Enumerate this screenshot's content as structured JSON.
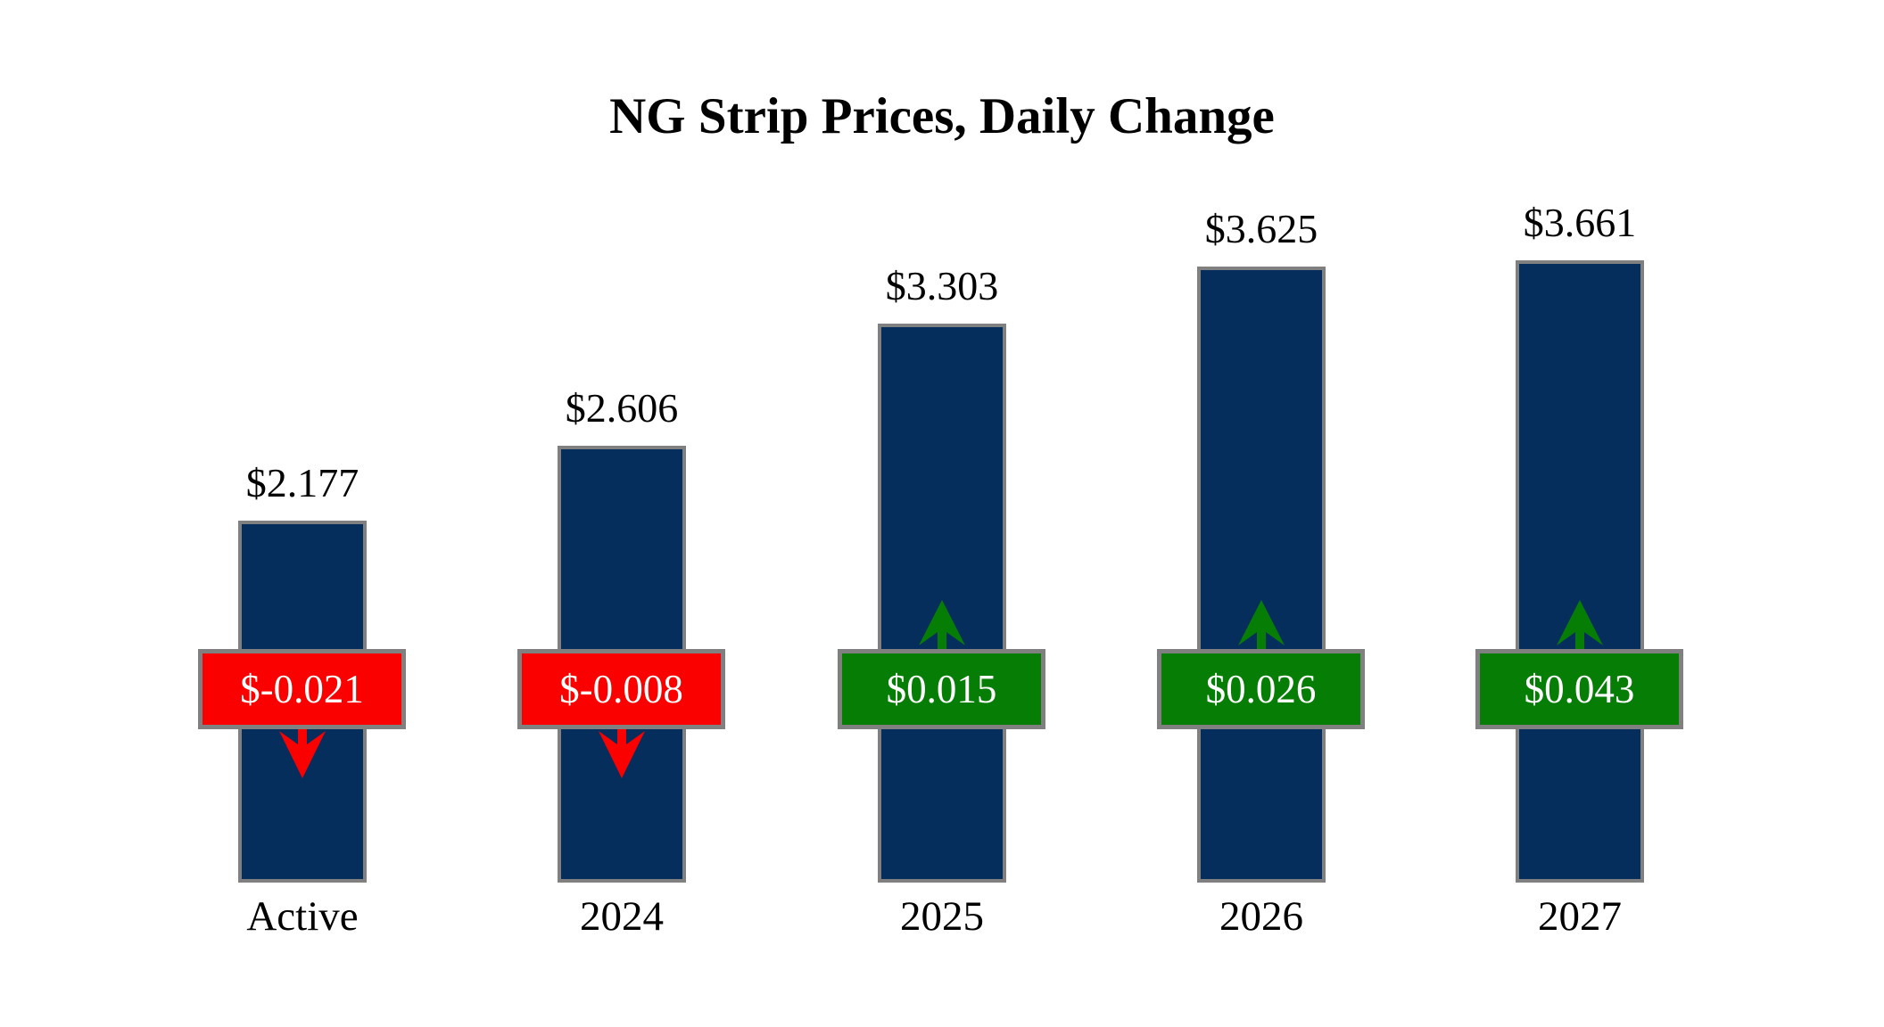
{
  "page": {
    "background": "#FFFFFF"
  },
  "chart_data": {
    "type": "bar",
    "title": "NG Strip Prices, Daily Change",
    "categories": [
      "Active",
      "2024",
      "2025",
      "2026",
      "2027"
    ],
    "series": [
      {
        "name": "Strip Price ($)",
        "values": [
          2.177,
          2.606,
          3.303,
          3.625,
          3.661
        ]
      },
      {
        "name": "Daily Change ($)",
        "values": [
          -0.021,
          -0.008,
          0.015,
          0.026,
          0.043
        ]
      }
    ],
    "value_labels": [
      "$2.177",
      "$2.606",
      "$3.303",
      "$3.625",
      "$3.661"
    ],
    "change_labels": [
      "$-0.021",
      "$-0.008",
      "$0.015",
      "$0.026",
      "$0.043"
    ],
    "ylim": [
      0,
      4.2
    ],
    "grid": false,
    "legend": "none",
    "colors": {
      "bar": "#052E5C",
      "bar_border": "#808080",
      "negative_badge": "#FA0100",
      "positive_badge": "#067E06",
      "badge_border": "#808080",
      "badge_text": "#FFFFFF",
      "label_text": "#000000",
      "background": "#FFFFFF"
    }
  }
}
